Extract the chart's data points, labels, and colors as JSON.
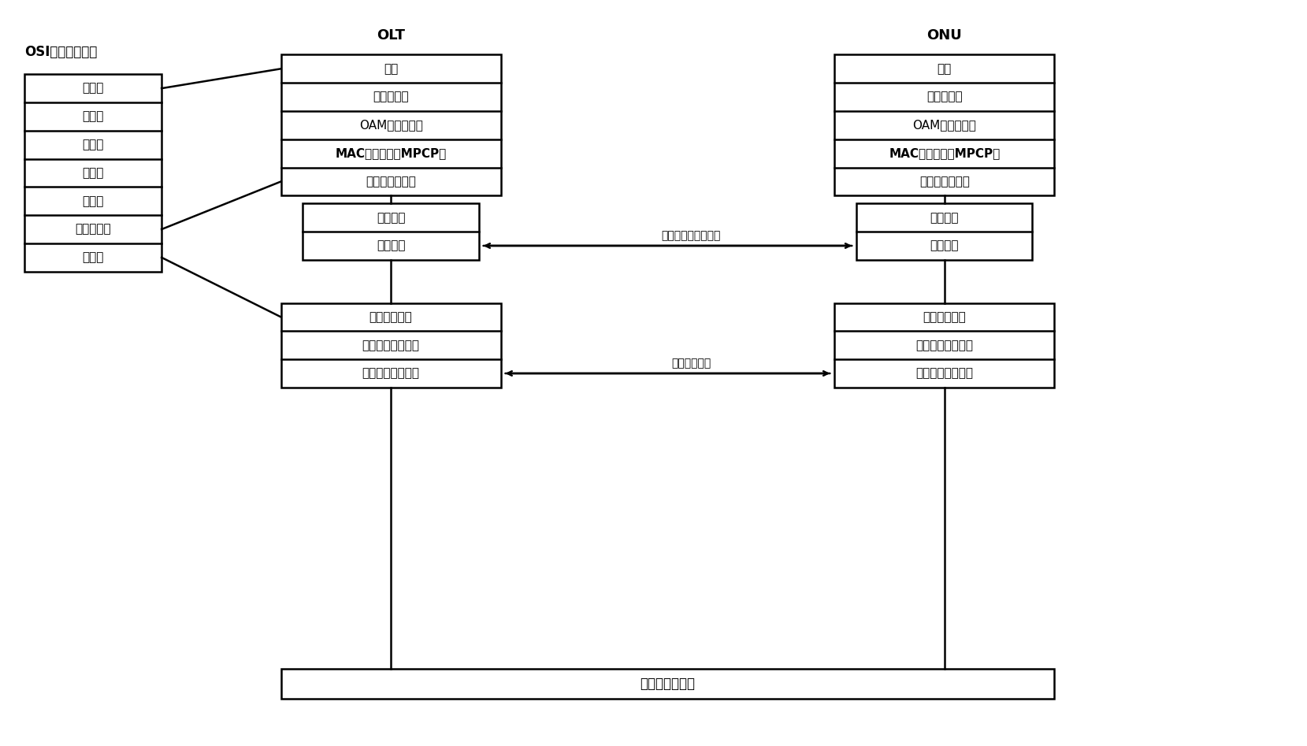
{
  "title": "OSI参考模型分层",
  "olt_label": "OLT",
  "onu_label": "ONU",
  "osi_layers": [
    "应用层",
    "表示层",
    "会话层",
    "传输层",
    "网络层",
    "数据链路层",
    "物理层"
  ],
  "olt_upper_layers": [
    "高层",
    "逻辑链路层",
    "OAM层（可选）",
    "MAC控制子层（MPCP）",
    "媒质接入控制层"
  ],
  "olt_lower_layers": [
    "仿真子层",
    "协调子层"
  ],
  "olt_phy_layers": [
    "物理编码子层",
    "物理媒质接入子层",
    "物理媒质相关子层"
  ],
  "onu_upper_layers": [
    "高层",
    "逻辑链路层",
    "OAM层（可选）",
    "MAC控制子层（MPCP）",
    "媒质接入控制层"
  ],
  "onu_lower_layers": [
    "仿真子层",
    "协调子层"
  ],
  "onu_phy_layers": [
    "物理编码子层",
    "物理媒质接入子层",
    "物理媒质相关子层"
  ],
  "interface1_label": "千兆位介质无关接口",
  "interface2_label": "媒质相关接口",
  "bottom_label": "无源光网络媒质",
  "bg_color": "#ffffff",
  "line_color": "#000000",
  "text_color": "#000000"
}
